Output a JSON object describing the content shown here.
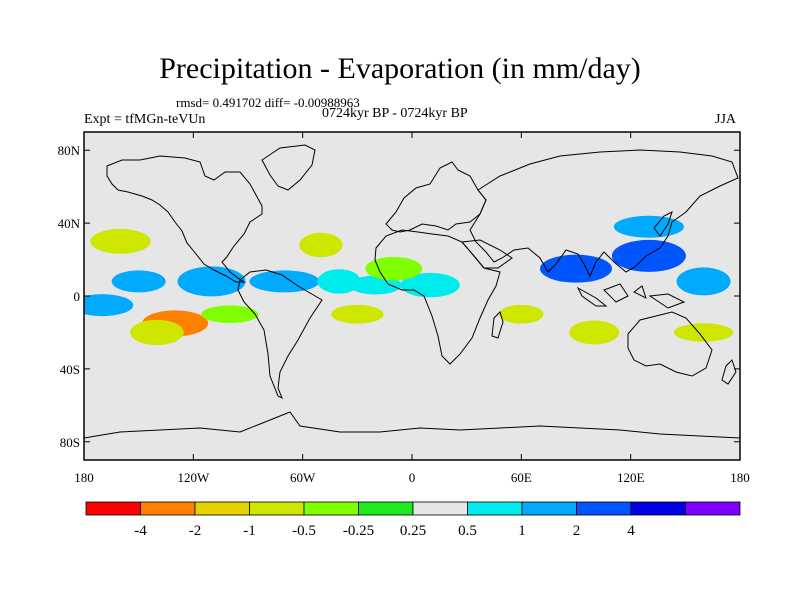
{
  "title": "Precipitation - Evaporation (in mm/day)",
  "stats": "rmsd= 0.491702 diff= -0.00988963",
  "expt": "Expt = tfMGn-teVUn",
  "period": "0724kyr BP - 0724kyr BP",
  "season": "JJA",
  "map": {
    "lon_range": [
      -180,
      180
    ],
    "lat_range": [
      -90,
      90
    ],
    "background_color": "#e6e6e6"
  },
  "axes": {
    "y_ticks": [
      {
        "lat": 80,
        "label": "80N"
      },
      {
        "lat": 40,
        "label": "40N"
      },
      {
        "lat": 0,
        "label": "0"
      },
      {
        "lat": -40,
        "label": "40S"
      },
      {
        "lat": -80,
        "label": "80S"
      }
    ],
    "x_ticks": [
      {
        "lon": -180,
        "label": "180"
      },
      {
        "lon": -120,
        "label": "120W"
      },
      {
        "lon": -60,
        "label": "60W"
      },
      {
        "lon": 0,
        "label": "0"
      },
      {
        "lon": 60,
        "label": "60E"
      },
      {
        "lon": 120,
        "label": "120E"
      },
      {
        "lon": 180,
        "label": "180"
      }
    ]
  },
  "colorbar": {
    "colors": [
      "#ff0000",
      "#ff8000",
      "#e6d200",
      "#cfe600",
      "#80ff00",
      "#1eeb1e",
      "#e6e6e6",
      "#00ebeb",
      "#00aaff",
      "#0055ff",
      "#0000e6",
      "#8000ff"
    ],
    "labels": [
      "-4",
      "-2",
      "-1",
      "-0.5",
      "-0.25",
      "0.25",
      "0.5",
      "1",
      "2",
      "4"
    ]
  },
  "chart_data": {
    "type": "heatmap",
    "title": "Precipitation - Evaporation (in mm/day)",
    "levels": [
      -4,
      -2,
      -1,
      -0.5,
      -0.25,
      0.25,
      0.5,
      1,
      2,
      4
    ],
    "regions": [
      {
        "lon": -150,
        "lat": 8,
        "value": 1.5
      },
      {
        "lon": -110,
        "lat": 8,
        "value": 2.0
      },
      {
        "lon": -70,
        "lat": 8,
        "value": 1.5
      },
      {
        "lon": -40,
        "lat": 8,
        "value": 0.6
      },
      {
        "lon": -20,
        "lat": 6,
        "value": 0.7
      },
      {
        "lon": 10,
        "lat": 6,
        "value": 0.6
      },
      {
        "lon": 90,
        "lat": 15,
        "value": 3.0
      },
      {
        "lon": 130,
        "lat": 22,
        "value": 2.5
      },
      {
        "lon": 130,
        "lat": 38,
        "value": 1.5
      },
      {
        "lon": 160,
        "lat": 8,
        "value": 1.5
      },
      {
        "lon": -170,
        "lat": -5,
        "value": 1.5
      },
      {
        "lon": -160,
        "lat": 30,
        "value": -0.7
      },
      {
        "lon": -130,
        "lat": -15,
        "value": -2.5
      },
      {
        "lon": -140,
        "lat": -20,
        "value": -0.8
      },
      {
        "lon": -100,
        "lat": -10,
        "value": -0.4
      },
      {
        "lon": -50,
        "lat": 28,
        "value": -0.6
      },
      {
        "lon": -30,
        "lat": -10,
        "value": -0.7
      },
      {
        "lon": -10,
        "lat": 15,
        "value": -0.4
      },
      {
        "lon": 60,
        "lat": -10,
        "value": -0.7
      },
      {
        "lon": 100,
        "lat": -20,
        "value": -0.5
      },
      {
        "lon": 160,
        "lat": -20,
        "value": -0.6
      },
      {
        "lon": -130,
        "lat": 50,
        "value": 0.4
      },
      {
        "lon": -40,
        "lat": 50,
        "value": 0.4
      },
      {
        "lon": 40,
        "lat": -50,
        "value": 0.4
      },
      {
        "lon": -120,
        "lat": -50,
        "value": 0.4
      }
    ]
  }
}
